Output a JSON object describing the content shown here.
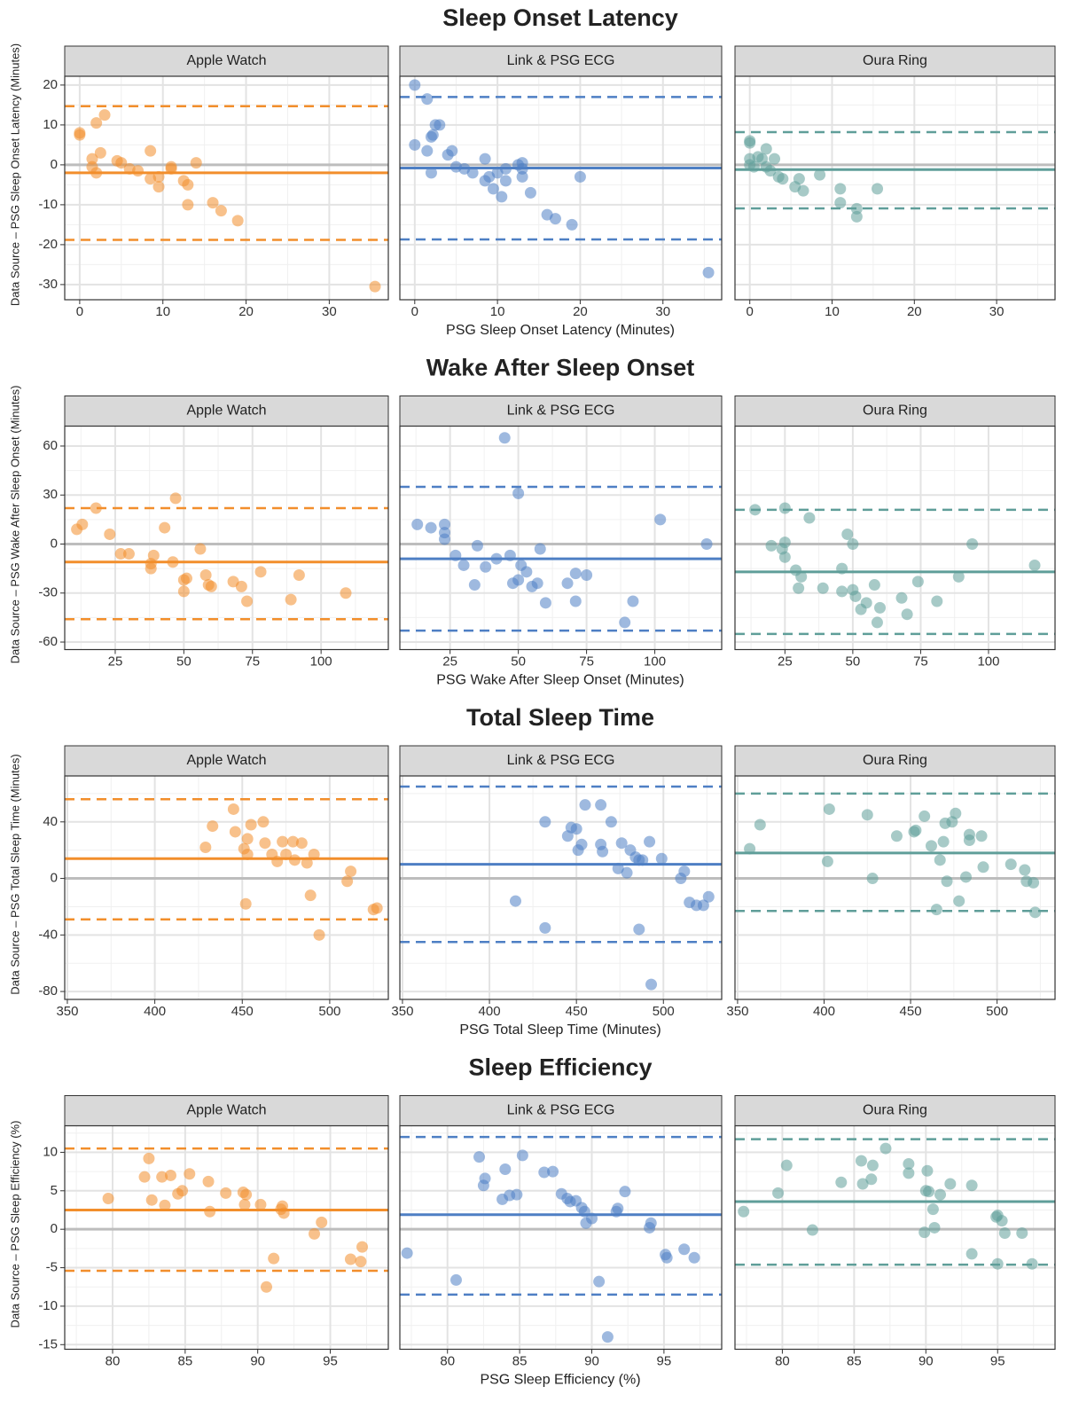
{
  "chart_data": [
    {
      "type": "scatter",
      "title": "Sleep Onset Latency",
      "x_label": "PSG Sleep Onset Latency (Minutes)",
      "y_label": "Data Source – PSG Sleep Onset Latency (Minutes)",
      "xlim": [
        -1.8,
        37.1
      ],
      "ylim": [
        -33.8,
        22.2
      ],
      "xticks": [
        0,
        10,
        20,
        30
      ],
      "yticks": [
        -30,
        -20,
        -10,
        0,
        10,
        20
      ],
      "grid": true,
      "series": [
        {
          "name": "Apple Watch",
          "color": "#f28e2b",
          "mean": -2,
          "upper_loa": 14.7,
          "lower_loa": -18.8,
          "x": [
            0,
            0,
            1.5,
            1.5,
            2,
            2,
            2.5,
            3,
            4.5,
            5,
            6,
            7,
            8.5,
            8.5,
            9.5,
            9.5,
            11,
            11,
            12.5,
            13,
            13,
            14,
            16,
            17,
            19,
            35.5
          ],
          "values": [
            7.5,
            8,
            1.5,
            -0.5,
            10.5,
            -2,
            3,
            12.5,
            1,
            0.5,
            -1,
            -1.5,
            3.5,
            -3.5,
            -3,
            -5.5,
            -0.5,
            -1,
            -4,
            -5,
            -10,
            0.5,
            -9.5,
            -11.5,
            -14,
            -30.5
          ]
        },
        {
          "name": "Link & PSG ECG",
          "color": "#4e7fc4",
          "mean": -0.8,
          "upper_loa": 17,
          "lower_loa": -18.7,
          "x": [
            0,
            0,
            1.5,
            1.5,
            2,
            2,
            2.2,
            2.5,
            3,
            4,
            4.5,
            5,
            6,
            7,
            8.5,
            8.5,
            9,
            9.5,
            10,
            10.5,
            11,
            11,
            12.5,
            13,
            13,
            13,
            14,
            16,
            17,
            19,
            20,
            35.5
          ],
          "values": [
            20,
            5,
            16.5,
            3.5,
            7,
            -2,
            7.5,
            10,
            10,
            2.5,
            3.5,
            -0.5,
            -1,
            -2,
            1.5,
            -4,
            -3,
            -6,
            -2,
            -8,
            -1,
            -4,
            0,
            0.5,
            -1,
            -3,
            -7,
            -12.5,
            -13.5,
            -15,
            -3,
            -27
          ]
        },
        {
          "name": "Oura Ring",
          "color": "#5f9e99",
          "mean": -1.2,
          "upper_loa": 8.2,
          "lower_loa": -10.9,
          "x": [
            0,
            0,
            0,
            0,
            0.5,
            1,
            1.5,
            2,
            2,
            2.5,
            3,
            3.5,
            4,
            6,
            5.5,
            6.5,
            8.5,
            11,
            11,
            13,
            13,
            15.5
          ],
          "values": [
            6,
            5.5,
            1.5,
            0,
            -0.5,
            2,
            1.5,
            -0.5,
            4,
            -1.5,
            1.5,
            -3,
            -3.5,
            -3.5,
            -5.5,
            -6.5,
            -2.5,
            -6,
            -9.5,
            -11,
            -13,
            -6
          ]
        }
      ]
    },
    {
      "type": "scatter",
      "title": "Wake After Sleep Onset",
      "x_label": "PSG Wake After Sleep Onset (Minutes)",
      "y_label": "Data Source – PSG Wake After Sleep Onset (Minutes)",
      "xlim": [
        6.6,
        124.5
      ],
      "ylim": [
        -64.6,
        72.2
      ],
      "xticks": [
        25,
        50,
        75,
        100
      ],
      "yticks": [
        -60,
        -30,
        0,
        30,
        60
      ],
      "grid": true,
      "series": [
        {
          "name": "Apple Watch",
          "color": "#f28e2b",
          "mean": -11,
          "upper_loa": 22,
          "lower_loa": -46,
          "x": [
            11,
            13,
            18,
            23,
            27,
            30,
            38,
            38,
            39,
            43,
            46,
            47,
            50,
            50,
            51,
            56,
            58,
            59,
            60,
            68,
            71,
            73,
            78,
            89,
            92,
            109
          ],
          "values": [
            9,
            12,
            22,
            6,
            -6,
            -6,
            -12,
            -15,
            -7,
            10,
            -11,
            28,
            -29,
            -22,
            -21,
            -3,
            -19,
            -25,
            -26,
            -23,
            -26,
            -35,
            -17,
            -34,
            -19,
            -30
          ]
        },
        {
          "name": "Link & PSG ECG",
          "color": "#4e7fc4",
          "mean": -9,
          "upper_loa": 35,
          "lower_loa": -53,
          "x": [
            13,
            18,
            23,
            23,
            23,
            27,
            30,
            34,
            35,
            38,
            42,
            45,
            47,
            48,
            50,
            50,
            51,
            53,
            55,
            57,
            58,
            60,
            68,
            71,
            71,
            75,
            89,
            92,
            102,
            119
          ],
          "values": [
            12,
            10,
            3,
            7,
            12,
            -7,
            -13,
            -25,
            -1,
            -14,
            -9,
            65,
            -7,
            -24,
            -22,
            31,
            -13,
            -17,
            -26,
            -24,
            -3,
            -36,
            -24,
            -18,
            -35,
            -19,
            -48,
            -35,
            15,
            0
          ]
        },
        {
          "name": "Oura Ring",
          "color": "#5f9e99",
          "mean": -17,
          "upper_loa": 21,
          "lower_loa": -55,
          "x": [
            14,
            20,
            24,
            25,
            25,
            25,
            29,
            30,
            31,
            34,
            39,
            46,
            46,
            48,
            50,
            50,
            51,
            53,
            55,
            58,
            59,
            60,
            68,
            70,
            74,
            81,
            89,
            94,
            117
          ],
          "values": [
            21,
            -1,
            -3,
            1,
            -8,
            22,
            -16,
            -27,
            -20,
            16,
            -27,
            -15,
            -29,
            6,
            -28,
            0,
            -32,
            -40,
            -36,
            -25,
            -48,
            -39,
            -33,
            -43,
            -23,
            -35,
            -20,
            0,
            -13
          ]
        }
      ]
    },
    {
      "type": "scatter",
      "title": "Total Sleep Time",
      "x_label": "PSG Total Sleep Time (Minutes)",
      "y_label": "Data Source – PSG Total Sleep Time (Minutes)",
      "xlim": [
        348.5,
        533.5
      ],
      "ylim": [
        -85.6,
        72.5
      ],
      "xticks": [
        350,
        400,
        450,
        500
      ],
      "yticks": [
        -80,
        -40,
        0,
        40
      ],
      "grid": true,
      "series": [
        {
          "name": "Apple Watch",
          "color": "#f28e2b",
          "mean": 14,
          "upper_loa": 56,
          "lower_loa": -29,
          "x": [
            429,
            433,
            445,
            446,
            451,
            452,
            453,
            453,
            455,
            462,
            463,
            467,
            470,
            473,
            475,
            479,
            480,
            484,
            487,
            489,
            491,
            494,
            510,
            512,
            525,
            527
          ],
          "values": [
            22,
            37,
            49,
            33,
            21,
            -18,
            17,
            28,
            38,
            40,
            25,
            17,
            12,
            26,
            17,
            26,
            13,
            25,
            11,
            -12,
            17,
            -40,
            -2,
            5,
            -22,
            -21
          ]
        },
        {
          "name": "Link & PSG ECG",
          "color": "#4e7fc4",
          "mean": 10,
          "upper_loa": 65,
          "lower_loa": -45,
          "x": [
            415,
            432,
            432,
            445,
            447,
            450,
            451,
            453,
            455,
            464,
            464,
            465,
            470,
            474,
            476,
            479,
            481,
            484,
            486,
            486,
            488,
            492,
            493,
            499,
            510,
            512,
            515,
            519,
            523,
            526
          ],
          "values": [
            -16,
            40,
            -35,
            30,
            36,
            35,
            20,
            24,
            52,
            52,
            24,
            19,
            40,
            7,
            25,
            4,
            20,
            15,
            -36,
            13,
            13,
            26,
            -75,
            14,
            0,
            5,
            -17,
            -19,
            -19,
            -13
          ]
        },
        {
          "name": "Oura Ring",
          "color": "#5f9e99",
          "mean": 18,
          "upper_loa": 60,
          "lower_loa": -23,
          "x": [
            357,
            363,
            402,
            403,
            425,
            428,
            442,
            452,
            453,
            458,
            462,
            465,
            467,
            469,
            470,
            471,
            474,
            476,
            478,
            482,
            484,
            484,
            491,
            492,
            508,
            516,
            517,
            521,
            522
          ],
          "values": [
            21,
            38,
            12,
            49,
            45,
            0,
            30,
            33,
            34,
            44,
            23,
            -22,
            13,
            26,
            39,
            -2,
            40,
            46,
            -16,
            1,
            31,
            27,
            30,
            8,
            10,
            6,
            -2,
            -3,
            -24
          ]
        }
      ]
    },
    {
      "type": "scatter",
      "title": "Sleep Efficiency",
      "x_label": "PSG Sleep Efficiency (%)",
      "y_label": "Data Source – PSG Sleep Efficiency (%)",
      "xlim": [
        76.7,
        99
      ],
      "ylim": [
        -15.6,
        13.45
      ],
      "xticks": [
        80,
        85,
        90,
        95
      ],
      "yticks": [
        -15,
        -10,
        -5,
        0,
        5,
        10
      ],
      "grid": true,
      "series": [
        {
          "name": "Apple Watch",
          "color": "#f28e2b",
          "mean": 2.5,
          "upper_loa": 10.5,
          "lower_loa": -5.4,
          "x": [
            79.7,
            82.2,
            82.5,
            82.7,
            83.4,
            83.6,
            84,
            84.5,
            84.8,
            85.3,
            86.6,
            86.7,
            87.8,
            89,
            89.1,
            89.2,
            90.2,
            91.1,
            91.6,
            91.7,
            91.8,
            90.6,
            93.9,
            94.4,
            96.4,
            97.1,
            97.2
          ],
          "values": [
            4,
            6.8,
            9.2,
            3.8,
            6.8,
            3.1,
            7,
            4.6,
            5,
            7.2,
            6.2,
            2.3,
            4.7,
            4.8,
            3.2,
            4.5,
            3.2,
            -3.8,
            2.6,
            3,
            2.1,
            -7.5,
            -0.6,
            0.9,
            -3.9,
            -4.2,
            -2.3
          ]
        },
        {
          "name": "Link & PSG ECG",
          "color": "#4e7fc4",
          "mean": 1.9,
          "upper_loa": 12,
          "lower_loa": -8.5,
          "x": [
            77.2,
            80.6,
            82.2,
            82.5,
            82.6,
            83.8,
            84,
            84.3,
            84.8,
            85.2,
            86.7,
            87.3,
            87.9,
            88.3,
            88.5,
            88.9,
            89.3,
            89.5,
            89.6,
            90,
            90.5,
            91.1,
            91.7,
            91.8,
            92.3,
            94,
            94.1,
            95.1,
            95.2,
            96.4,
            97.1
          ],
          "values": [
            -3.1,
            -6.6,
            9.4,
            5.7,
            6.6,
            3.9,
            7.8,
            4.4,
            4.5,
            9.6,
            7.4,
            7.5,
            4.6,
            4,
            3.6,
            3.7,
            2.8,
            2.3,
            0.8,
            1.4,
            -6.8,
            -14,
            2.3,
            2.7,
            4.9,
            0.2,
            0.8,
            -3.3,
            -3.7,
            -2.6,
            -3.7
          ]
        },
        {
          "name": "Oura Ring",
          "color": "#5f9e99",
          "mean": 3.6,
          "upper_loa": 11.7,
          "lower_loa": -4.6,
          "x": [
            77.3,
            79.7,
            80.3,
            82.1,
            84.1,
            85.5,
            85.6,
            86.2,
            86.3,
            87.2,
            88.8,
            88.8,
            89.9,
            90,
            90.1,
            90.2,
            90.5,
            90.6,
            91,
            91.7,
            93.2,
            93.2,
            94.9,
            95,
            95,
            95.3,
            95.5,
            96.7,
            97.4
          ],
          "values": [
            2.3,
            4.7,
            8.3,
            -0.1,
            6.1,
            8.9,
            5.9,
            6.5,
            8.3,
            10.5,
            8.5,
            7.3,
            -0.4,
            5,
            7.6,
            4.9,
            2.6,
            0.2,
            4.5,
            5.9,
            5.7,
            -3.2,
            1.6,
            1.8,
            -4.5,
            1.1,
            -0.5,
            -0.5,
            -4.5
          ]
        }
      ]
    }
  ]
}
